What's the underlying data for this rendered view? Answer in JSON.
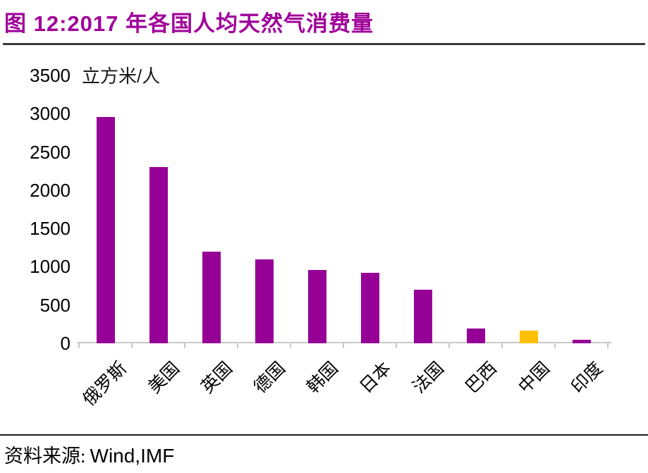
{
  "figure": {
    "title": "图 12:2017 年各国人均天然气消费量",
    "source_label": "资料来源:",
    "source_value": "Wind,IMF"
  },
  "chart_data": {
    "type": "bar",
    "title": "2017 年各国人均天然气消费量",
    "xlabel": "",
    "ylabel": "立方米/人",
    "categories": [
      "俄罗斯",
      "美国",
      "英国",
      "德国",
      "韩国",
      "日本",
      "法国",
      "巴西",
      "中国",
      "印度"
    ],
    "category_ids": [
      "russia",
      "usa",
      "uk",
      "germany",
      "south-korea",
      "japan",
      "france",
      "brazil",
      "china",
      "india"
    ],
    "values": [
      2960,
      2300,
      1200,
      1100,
      960,
      920,
      700,
      190,
      170,
      50
    ],
    "bar_colors": [
      "#960096",
      "#960096",
      "#960096",
      "#960096",
      "#960096",
      "#960096",
      "#960096",
      "#960096",
      "#FFC000",
      "#960096"
    ],
    "highlight": {
      "category": "中国",
      "color": "#FFC000"
    },
    "ylim": [
      0,
      3500
    ],
    "yticks": [
      0,
      500,
      1000,
      1500,
      2000,
      2500,
      3000,
      3500
    ],
    "grid": false,
    "legend": false
  },
  "colors": {
    "title_text": "#A0009A",
    "bar_default": "#960096",
    "bar_highlight": "#FFC000",
    "axis_line": "#C9C9C9",
    "title_separator": "#3A3A3A",
    "footer_separator": "#1A1A1A",
    "text": "#000000"
  }
}
